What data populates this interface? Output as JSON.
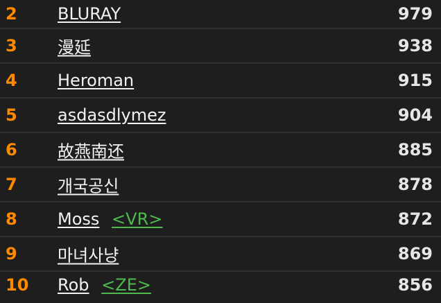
{
  "leaderboard": {
    "rows": [
      {
        "rank": "2",
        "name": "BLURAY",
        "clan": "",
        "score": "979"
      },
      {
        "rank": "3",
        "name": "漫延",
        "clan": "",
        "score": "938"
      },
      {
        "rank": "4",
        "name": "Heroman",
        "clan": "",
        "score": "915"
      },
      {
        "rank": "5",
        "name": "asdasdlymez",
        "clan": "",
        "score": "904"
      },
      {
        "rank": "6",
        "name": "故燕南还",
        "clan": "",
        "score": "885"
      },
      {
        "rank": "7",
        "name": "개국공신",
        "clan": "",
        "score": "878"
      },
      {
        "rank": "8",
        "name": "Moss",
        "clan": "<VR>",
        "score": "872"
      },
      {
        "rank": "9",
        "name": "마녀사냥",
        "clan": "",
        "score": "869"
      },
      {
        "rank": "10",
        "name": "Rob",
        "clan": "<ZE>",
        "score": "856"
      }
    ],
    "colors": {
      "background": "#1e1e1e",
      "divider": "#323232",
      "rank": "#ff8a00",
      "name": "#f2f2f2",
      "clan": "#4dbb4d",
      "score": "#e6e6e6"
    }
  }
}
